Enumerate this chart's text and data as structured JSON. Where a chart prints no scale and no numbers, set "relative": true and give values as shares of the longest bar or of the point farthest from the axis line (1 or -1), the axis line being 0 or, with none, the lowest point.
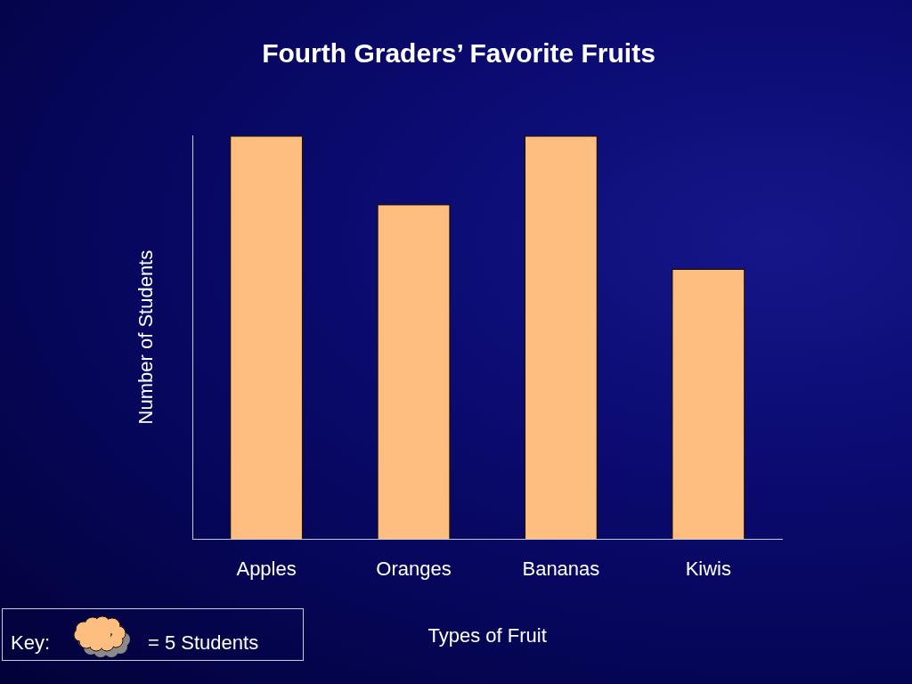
{
  "chart_data": {
    "type": "bar",
    "title": "Fourth Graders’ Favorite Fruits",
    "xlabel": "Types of Fruit",
    "ylabel": "Number of Students",
    "categories": [
      "Apples",
      "Oranges",
      "Bananas",
      "Kiwis"
    ],
    "values": [
      1,
      0.83,
      1,
      0.67
    ],
    "color": "#fdbe80",
    "relative": true,
    "annotations": [
      "Key:",
      "= 5 Students"
    ]
  }
}
